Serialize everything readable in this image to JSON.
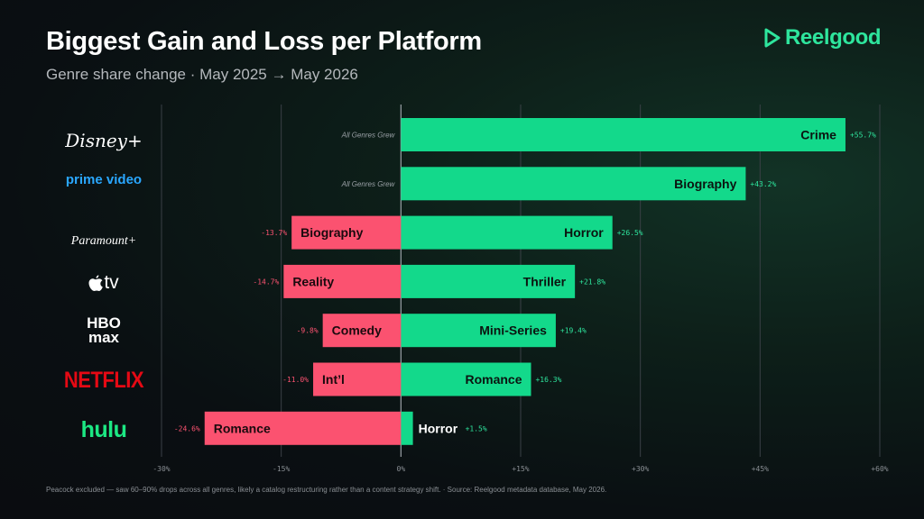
{
  "header": {
    "title": "Biggest Gain and Loss per Platform",
    "subtitle": "Genre share change · May 2025 → May 2026"
  },
  "brand": {
    "name": "Reelgood",
    "color": "#2ee59d"
  },
  "colors": {
    "gain": "#13d98b",
    "loss": "#fb5270"
  },
  "platforms": [
    {
      "name": "Disney+",
      "logo_text": "Disney+"
    },
    {
      "name": "prime video",
      "logo_text": "prime video"
    },
    {
      "name": "Paramount+",
      "logo_text": "Paramount+"
    },
    {
      "name": "Apple TV",
      "logo_text": " tv"
    },
    {
      "name": "HBO Max",
      "logo_text": "HBO max"
    },
    {
      "name": "Netflix",
      "logo_text": "NETFLIX"
    },
    {
      "name": "Hulu",
      "logo_text": "hulu"
    }
  ],
  "chart_data": {
    "type": "bar",
    "orientation": "horizontal-diverging",
    "title": "Biggest Gain and Loss per Platform",
    "subtitle": "Genre share change · May 2025 → May 2026",
    "xlim": [
      -30,
      60
    ],
    "xticks": [
      -30,
      -15,
      0,
      15,
      30,
      45,
      60
    ],
    "xtick_labels": [
      "-30%",
      "-15%",
      "0%",
      "+15%",
      "+30%",
      "+45%",
      "+60%"
    ],
    "grid": true,
    "categories": [
      "Disney+",
      "Prime Video",
      "Paramount+",
      "Apple TV",
      "HBO Max",
      "Netflix",
      "Hulu"
    ],
    "series": [
      {
        "name": "Biggest Gain",
        "genres": [
          "Crime",
          "Biography",
          "Horror",
          "Thriller",
          "Mini-Series",
          "Romance",
          "Horror"
        ],
        "values": [
          55.7,
          43.2,
          26.5,
          21.8,
          19.4,
          16.3,
          1.5
        ],
        "value_labels": [
          "+55.7%",
          "+43.2%",
          "+26.5%",
          "+21.8%",
          "+19.4%",
          "+16.3%",
          "+1.5%"
        ]
      },
      {
        "name": "Biggest Loss",
        "genres": [
          "",
          "",
          "Biography",
          "Reality",
          "Comedy",
          "Int’l",
          "Romance"
        ],
        "values": [
          null,
          null,
          -13.7,
          -14.7,
          -9.8,
          -11.0,
          -24.6
        ],
        "value_labels": [
          "",
          "",
          "-13.7%",
          "-14.7%",
          "-9.8%",
          "-11.0%",
          "-24.6%"
        ]
      }
    ],
    "annotations": [
      "All Genres Grew",
      "All Genres Grew",
      "",
      "",
      "",
      "",
      ""
    ]
  },
  "footnote": "Peacock excluded — saw 60–90% drops across all genres, likely a catalog restructuring rather than a content strategy shift.  ·  Source: Reelgood metadata database, May 2026."
}
